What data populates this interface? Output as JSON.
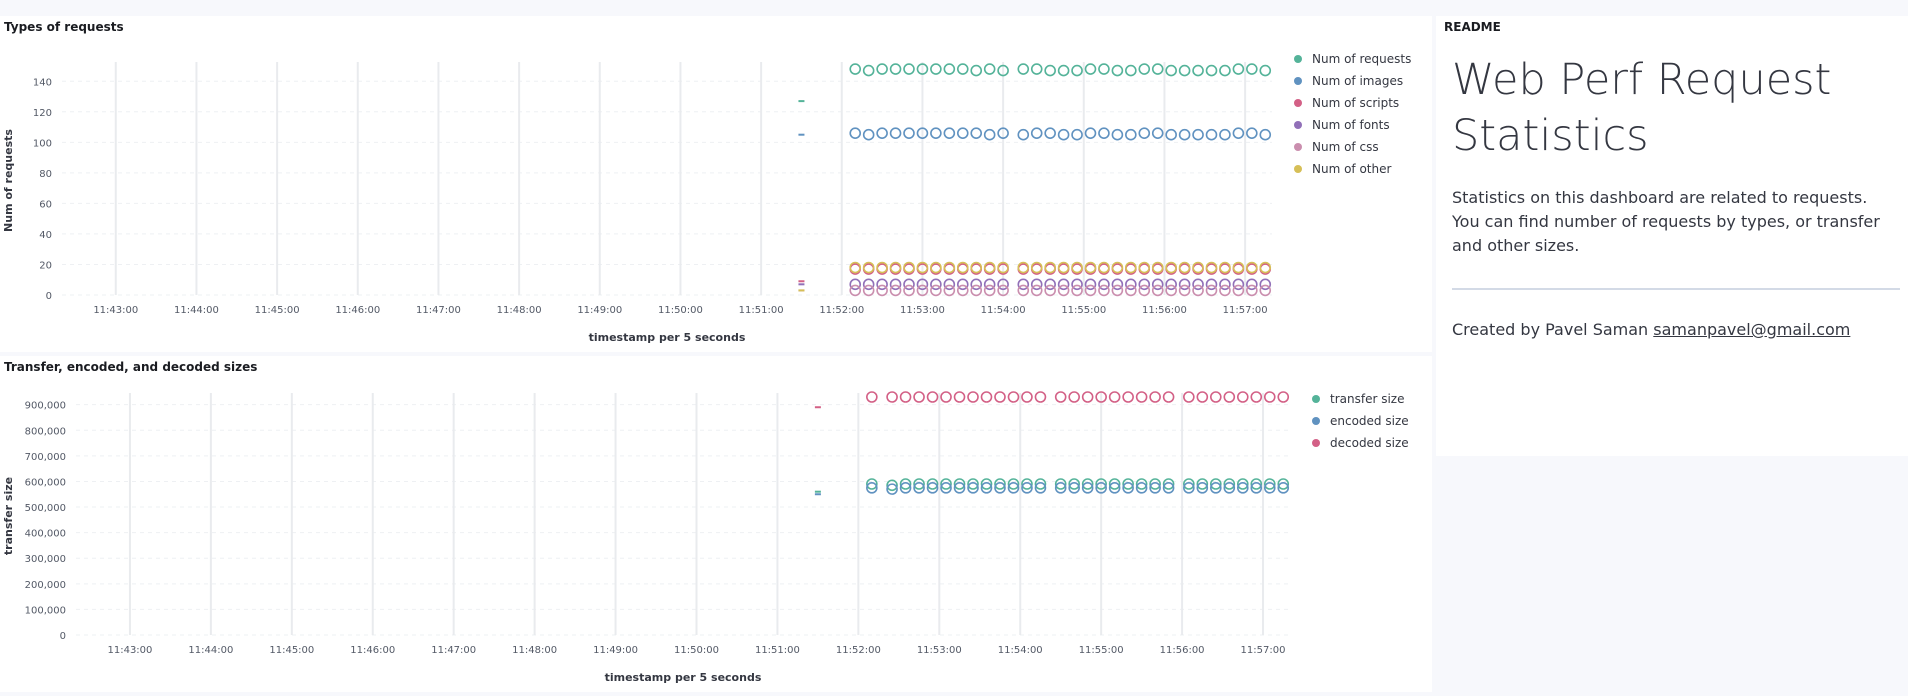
{
  "panels": {
    "requests": {
      "title": "Types of requests"
    },
    "sizes": {
      "title": "Transfer, encoded, and decoded sizes"
    },
    "readme": {
      "title": "README",
      "heading": "Web Perf Request Statistics",
      "description": "Statistics on this dashboard are related to requests. You can find number of requests by types, or transfer and other sizes.",
      "credit_prefix": "Created by Pavel Saman ",
      "email": "samanpavel@gmail.com"
    }
  },
  "chart_data": [
    {
      "type": "scatter",
      "title": "Types of requests",
      "xlabel": "timestamp per 5 seconds",
      "ylabel": "Num of requests",
      "x_ticks": [
        "11:43:00",
        "11:44:00",
        "11:45:00",
        "11:46:00",
        "11:47:00",
        "11:48:00",
        "11:49:00",
        "11:50:00",
        "11:51:00",
        "11:52:00",
        "11:53:00",
        "11:54:00",
        "11:55:00",
        "11:56:00",
        "11:57:00"
      ],
      "x_range": [
        "11:42:20",
        "11:57:20"
      ],
      "y_ticks": [
        0,
        20,
        40,
        60,
        80,
        100,
        120,
        140
      ],
      "ylim": [
        0,
        150
      ],
      "grid": true,
      "legend_position": "right",
      "x": [
        "11:51:30",
        "11:52:10",
        "11:52:20",
        "11:52:30",
        "11:52:40",
        "11:52:50",
        "11:53:00",
        "11:53:10",
        "11:53:20",
        "11:53:30",
        "11:53:40",
        "11:53:50",
        "11:54:00",
        "11:54:15",
        "11:54:25",
        "11:54:35",
        "11:54:45",
        "11:54:55",
        "11:55:05",
        "11:55:15",
        "11:55:25",
        "11:55:35",
        "11:55:45",
        "11:55:55",
        "11:56:05",
        "11:56:15",
        "11:56:25",
        "11:56:35",
        "11:56:45",
        "11:56:55",
        "11:57:05",
        "11:57:15"
      ],
      "series": [
        {
          "name": "Num of requests",
          "color": "#54b399",
          "values": [
            127,
            148,
            147,
            148,
            148,
            148,
            148,
            148,
            148,
            148,
            147,
            148,
            147,
            148,
            148,
            147,
            147,
            147,
            148,
            148,
            147,
            147,
            148,
            148,
            147,
            147,
            147,
            147,
            147,
            148,
            148,
            147
          ]
        },
        {
          "name": "Num of images",
          "color": "#6092c0",
          "values": [
            105,
            106,
            105,
            106,
            106,
            106,
            106,
            106,
            106,
            106,
            106,
            105,
            106,
            105,
            106,
            106,
            105,
            105,
            106,
            106,
            105,
            105,
            106,
            106,
            105,
            105,
            105,
            105,
            105,
            106,
            106,
            105
          ]
        },
        {
          "name": "Num of scripts",
          "color": "#d36086",
          "values": [
            9,
            17,
            17,
            17,
            17,
            17,
            17,
            17,
            17,
            17,
            17,
            17,
            17,
            17,
            17,
            17,
            17,
            17,
            17,
            17,
            17,
            17,
            17,
            17,
            17,
            17,
            17,
            17,
            17,
            17,
            17,
            17
          ]
        },
        {
          "name": "Num of fonts",
          "color": "#9170b8",
          "values": [
            7,
            7,
            7,
            7,
            7,
            7,
            7,
            7,
            7,
            7,
            7,
            7,
            7,
            7,
            7,
            7,
            7,
            7,
            7,
            7,
            7,
            7,
            7,
            7,
            7,
            7,
            7,
            7,
            7,
            7,
            7,
            7
          ]
        },
        {
          "name": "Num of css",
          "color": "#ca8eae",
          "values": [
            3,
            3,
            3,
            3,
            3,
            3,
            3,
            3,
            3,
            3,
            3,
            3,
            3,
            3,
            3,
            3,
            3,
            3,
            3,
            3,
            3,
            3,
            3,
            3,
            3,
            3,
            3,
            3,
            3,
            3,
            3,
            3
          ]
        },
        {
          "name": "Num of other",
          "color": "#d6bf57",
          "values": [
            3,
            18,
            18,
            18,
            18,
            18,
            18,
            18,
            18,
            18,
            18,
            18,
            18,
            18,
            18,
            18,
            18,
            18,
            18,
            18,
            18,
            18,
            18,
            18,
            18,
            18,
            18,
            18,
            18,
            18,
            18,
            18
          ]
        }
      ]
    },
    {
      "type": "scatter",
      "title": "Transfer, encoded, and decoded sizes",
      "xlabel": "timestamp per 5 seconds",
      "ylabel": "transfer size",
      "x_ticks": [
        "11:43:00",
        "11:44:00",
        "11:45:00",
        "11:46:00",
        "11:47:00",
        "11:48:00",
        "11:49:00",
        "11:50:00",
        "11:51:00",
        "11:52:00",
        "11:53:00",
        "11:54:00",
        "11:55:00",
        "11:56:00",
        "11:57:00"
      ],
      "x_range": [
        "11:42:20",
        "11:57:20"
      ],
      "y_ticks": [
        0,
        100000,
        200000,
        300000,
        400000,
        500000,
        600000,
        700000,
        800000,
        900000
      ],
      "y_tick_labels": [
        "0",
        "100,000",
        "200,000",
        "300,000",
        "400,000",
        "500,000",
        "600,000",
        "700,000",
        "800,000",
        "900,000"
      ],
      "ylim": [
        0,
        930000
      ],
      "grid": true,
      "legend_position": "right",
      "x": [
        "11:51:30",
        "11:52:10",
        "11:52:25",
        "11:52:35",
        "11:52:45",
        "11:52:55",
        "11:53:05",
        "11:53:15",
        "11:53:25",
        "11:53:35",
        "11:53:45",
        "11:53:55",
        "11:54:05",
        "11:54:15",
        "11:54:30",
        "11:54:40",
        "11:54:50",
        "11:55:00",
        "11:55:10",
        "11:55:20",
        "11:55:30",
        "11:55:40",
        "11:55:50",
        "11:56:05",
        "11:56:15",
        "11:56:25",
        "11:56:35",
        "11:56:45",
        "11:56:55",
        "11:57:05",
        "11:57:15"
      ],
      "series": [
        {
          "name": "transfer size",
          "color": "#54b399",
          "values": [
            560000,
            590000,
            585000,
            590000,
            590000,
            590000,
            590000,
            590000,
            590000,
            590000,
            590000,
            590000,
            590000,
            590000,
            590000,
            590000,
            590000,
            590000,
            590000,
            590000,
            590000,
            590000,
            590000,
            590000,
            590000,
            590000,
            590000,
            590000,
            590000,
            590000,
            590000
          ]
        },
        {
          "name": "encoded size",
          "color": "#6092c0",
          "values": [
            550000,
            575000,
            570000,
            575000,
            575000,
            575000,
            575000,
            575000,
            575000,
            575000,
            575000,
            575000,
            575000,
            575000,
            575000,
            575000,
            575000,
            575000,
            575000,
            575000,
            575000,
            575000,
            575000,
            575000,
            575000,
            575000,
            575000,
            575000,
            575000,
            575000,
            575000
          ]
        },
        {
          "name": "decoded size",
          "color": "#d36086",
          "values": [
            890000,
            930000,
            930000,
            930000,
            930000,
            930000,
            930000,
            930000,
            930000,
            930000,
            930000,
            930000,
            930000,
            930000,
            930000,
            930000,
            930000,
            930000,
            930000,
            930000,
            930000,
            930000,
            930000,
            930000,
            930000,
            930000,
            930000,
            930000,
            930000,
            930000,
            930000
          ]
        }
      ]
    }
  ]
}
